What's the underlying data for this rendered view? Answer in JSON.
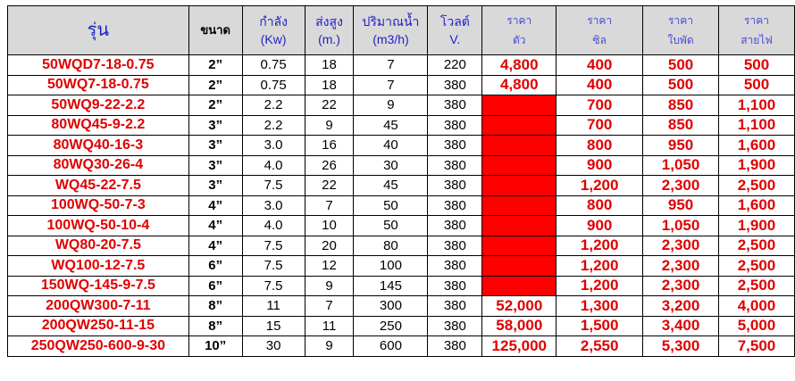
{
  "header": {
    "model": "รุ่น",
    "size": "ขนาด",
    "power": "กำลัง",
    "power_unit": "(Kw)",
    "head": "ส่งสูง",
    "head_unit": "(m.)",
    "flow": "ปริมาณน้ำ",
    "flow_unit": "(m3/h)",
    "volt": "โวลต์",
    "volt_unit": "V.",
    "price": "ราคา",
    "price_body": "ตัว",
    "price_seal": "ซิล",
    "price_impeller": "ใบพัด",
    "price_cable": "สายไฟ"
  },
  "colors": {
    "header_bg": "#d9d9d9",
    "header_text": "#1f1fc8",
    "price_text": "#e00000",
    "fill": "#ff0000"
  },
  "rows": [
    [
      "50WQD7-18-0.75",
      "2”",
      "0.75",
      "18",
      "7",
      "220",
      "4,800",
      "400",
      "500",
      "500"
    ],
    [
      "50WQ7-18-0.75",
      "2”",
      "0.75",
      "18",
      "7",
      "380",
      "4,800",
      "400",
      "500",
      "500"
    ],
    [
      "50WQ9-22-2.2",
      "2”",
      "2.2",
      "22",
      "9",
      "380",
      "",
      "700",
      "850",
      "1,100"
    ],
    [
      "80WQ45-9-2.2",
      "3”",
      "2.2",
      "9",
      "45",
      "380",
      "",
      "700",
      "850",
      "1,100"
    ],
    [
      "80WQ40-16-3",
      "3”",
      "3.0",
      "16",
      "40",
      "380",
      "",
      "800",
      "950",
      "1,600"
    ],
    [
      "80WQ30-26-4",
      "3”",
      "4.0",
      "26",
      "30",
      "380",
      "",
      "900",
      "1,050",
      "1,900"
    ],
    [
      "WQ45-22-7.5",
      "3”",
      "7.5",
      "22",
      "45",
      "380",
      "",
      "1,200",
      "2,300",
      "2,500"
    ],
    [
      "100WQ-50-7-3",
      "4”",
      "3.0",
      "7",
      "50",
      "380",
      "",
      "800",
      "950",
      "1,600"
    ],
    [
      "100WQ-50-10-4",
      "4”",
      "4.0",
      "10",
      "50",
      "380",
      "",
      "900",
      "1,050",
      "1,900"
    ],
    [
      "WQ80-20-7.5",
      "4”",
      "7.5",
      "20",
      "80",
      "380",
      "",
      "1,200",
      "2,300",
      "2,500"
    ],
    [
      "WQ100-12-7.5",
      "6”",
      "7.5",
      "12",
      "100",
      "380",
      "",
      "1,200",
      "2,300",
      "2,500"
    ],
    [
      "150WQ-145-9-7.5",
      "6”",
      "7.5",
      "9",
      "145",
      "380",
      "",
      "1,200",
      "2,300",
      "2,500"
    ],
    [
      "200QW300-7-11",
      "8”",
      "11",
      "7",
      "300",
      "380",
      "52,000",
      "1,300",
      "3,200",
      "4,000"
    ],
    [
      "200QW250-11-15",
      "8”",
      "15",
      "11",
      "250",
      "380",
      "58,000",
      "1,500",
      "3,400",
      "5,000"
    ],
    [
      "250QW250-600-9-30",
      "10”",
      "30",
      "9",
      "600",
      "380",
      "125,000",
      "2,550",
      "5,300",
      "7,500"
    ]
  ]
}
